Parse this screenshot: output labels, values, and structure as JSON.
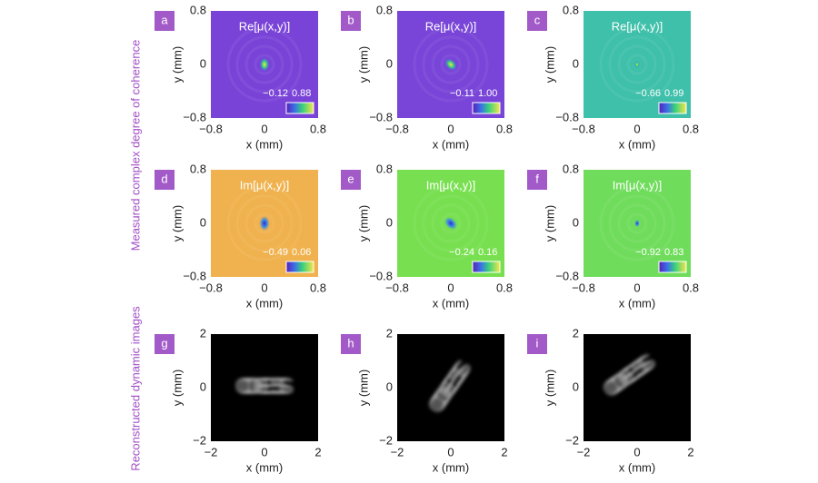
{
  "side_labels": [
    "Measured complex degree of coherence",
    "Reconstructed dynamic images"
  ],
  "panels": [
    {
      "label": "a",
      "title": "Re[μ(x,y)]",
      "cbar": [
        "−0.12",
        "0.88"
      ],
      "xticks": [
        "−0.8",
        "0",
        "0.8"
      ],
      "yticks": [
        "0.8",
        "0",
        "−0.8"
      ],
      "xlabel": "x (mm)",
      "ylabel": "y (mm)"
    },
    {
      "label": "b",
      "title": "Re[μ(x,y)]",
      "cbar": [
        "−0.11",
        "1.00"
      ],
      "xticks": [
        "−0.8",
        "0",
        "0.8"
      ],
      "yticks": [
        "0.8",
        "0",
        "−0.8"
      ],
      "xlabel": "x (mm)",
      "ylabel": "y (mm)"
    },
    {
      "label": "c",
      "title": "Re[μ(x,y)]",
      "cbar": [
        "−0.66",
        "0.99"
      ],
      "xticks": [
        "−0.8",
        "0",
        "0.8"
      ],
      "yticks": [
        "0.8",
        "0",
        "−0.8"
      ],
      "xlabel": "x (mm)",
      "ylabel": "y (mm)"
    },
    {
      "label": "d",
      "title": "Im[μ(x,y)]",
      "cbar": [
        "−0.49",
        "0.06"
      ],
      "xticks": [
        "−0.8",
        "0",
        "0.8"
      ],
      "yticks": [
        "0.8",
        "0",
        "−0.8"
      ],
      "xlabel": "x (mm)",
      "ylabel": "y (mm)"
    },
    {
      "label": "e",
      "title": "Im[μ(x,y)]",
      "cbar": [
        "−0.24",
        "0.16"
      ],
      "xticks": [
        "−0.8",
        "0",
        "0.8"
      ],
      "yticks": [
        "0.8",
        "0",
        "−0.8"
      ],
      "xlabel": "x (mm)",
      "ylabel": "y (mm)"
    },
    {
      "label": "f",
      "title": "Im[μ(x,y)]",
      "cbar": [
        "−0.92",
        "0.83"
      ],
      "xticks": [
        "−0.8",
        "0",
        "0.8"
      ],
      "yticks": [
        "0.8",
        "0",
        "−0.8"
      ],
      "xlabel": "x (mm)",
      "ylabel": "y (mm)"
    },
    {
      "label": "g",
      "image_text": "OES",
      "xticks": [
        "−2",
        "0",
        "2"
      ],
      "yticks": [
        "2",
        "0",
        "−2"
      ],
      "xlabel": "x (mm)",
      "ylabel": "y (mm)"
    },
    {
      "label": "h",
      "image_text": "OES",
      "xticks": [
        "−2",
        "0",
        "2"
      ],
      "yticks": [
        "2",
        "0",
        "−2"
      ],
      "xlabel": "x (mm)",
      "ylabel": "y (mm)"
    },
    {
      "label": "i",
      "image_text": "OES",
      "xticks": [
        "−2",
        "0",
        "2"
      ],
      "yticks": [
        "2",
        "0",
        "−2"
      ],
      "xlabel": "x (mm)",
      "ylabel": "y (mm)"
    }
  ]
}
